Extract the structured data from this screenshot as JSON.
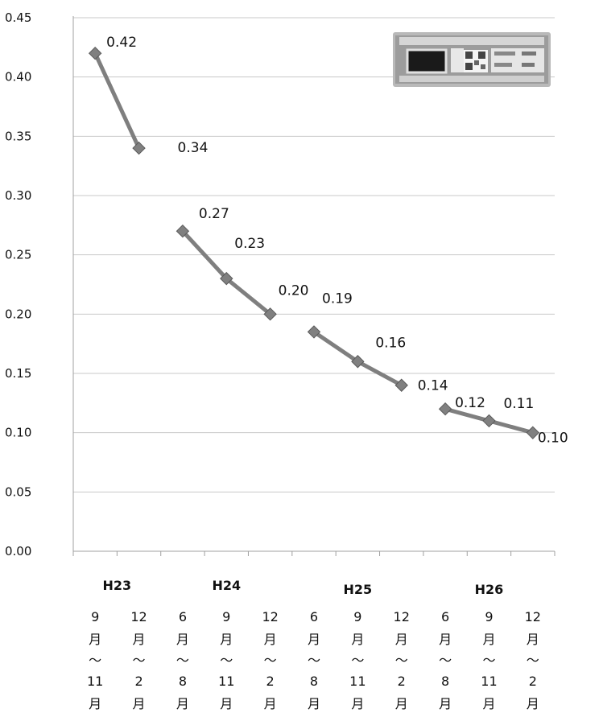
{
  "chart_data": {
    "type": "line",
    "ylim": [
      0,
      0.45
    ],
    "yticks": [
      "0.00",
      "0.05",
      "0.10",
      "0.15",
      "0.20",
      "0.25",
      "0.30",
      "0.35",
      "0.40",
      "0.45"
    ],
    "grid": true,
    "year_labels": [
      "H23",
      "H24",
      "H25",
      "H26"
    ],
    "categories": [
      {
        "year": "H23",
        "lines": [
          "9",
          "月",
          "〜",
          "11",
          "月"
        ]
      },
      {
        "year": "H23",
        "lines": [
          "12",
          "月",
          "〜",
          "2",
          "月"
        ]
      },
      {
        "year": "H24",
        "lines": [
          "6",
          "月",
          "〜",
          "8",
          "月"
        ]
      },
      {
        "year": "H24",
        "lines": [
          "9",
          "月",
          "〜",
          "11",
          "月"
        ]
      },
      {
        "year": "H24",
        "lines": [
          "12",
          "月",
          "〜",
          "2",
          "月"
        ]
      },
      {
        "year": "H25",
        "lines": [
          "6",
          "月",
          "〜",
          "8",
          "月"
        ]
      },
      {
        "year": "H25",
        "lines": [
          "9",
          "月",
          "〜",
          "11",
          "月"
        ]
      },
      {
        "year": "H25",
        "lines": [
          "12",
          "月",
          "〜",
          "2",
          "月"
        ]
      },
      {
        "year": "H26",
        "lines": [
          "6",
          "月",
          "〜",
          "8",
          "月"
        ]
      },
      {
        "year": "H26",
        "lines": [
          "9",
          "月",
          "〜",
          "11",
          "月"
        ]
      },
      {
        "year": "H26",
        "lines": [
          "12",
          "月",
          "〜",
          "2",
          "月"
        ]
      }
    ],
    "segments": [
      {
        "year": "H23",
        "values": [
          0.42,
          0.34
        ],
        "labels": [
          "0.42",
          "0.34"
        ]
      },
      {
        "year": "H24",
        "values": [
          0.27,
          0.23,
          0.2
        ],
        "labels": [
          "0.27",
          "0.23",
          "0.20"
        ]
      },
      {
        "year": "H25",
        "values": [
          0.185,
          0.16,
          0.14
        ],
        "labels": [
          "0.19",
          "0.16",
          "0.14"
        ]
      },
      {
        "year": "H26",
        "values": [
          0.12,
          0.11,
          0.1
        ],
        "labels": [
          "0.12",
          "0.11",
          "0.10"
        ]
      }
    ],
    "colors": {
      "series": "#808080",
      "grid": "#c8c8c8"
    },
    "inset_image": "dosimeter-photo"
  }
}
